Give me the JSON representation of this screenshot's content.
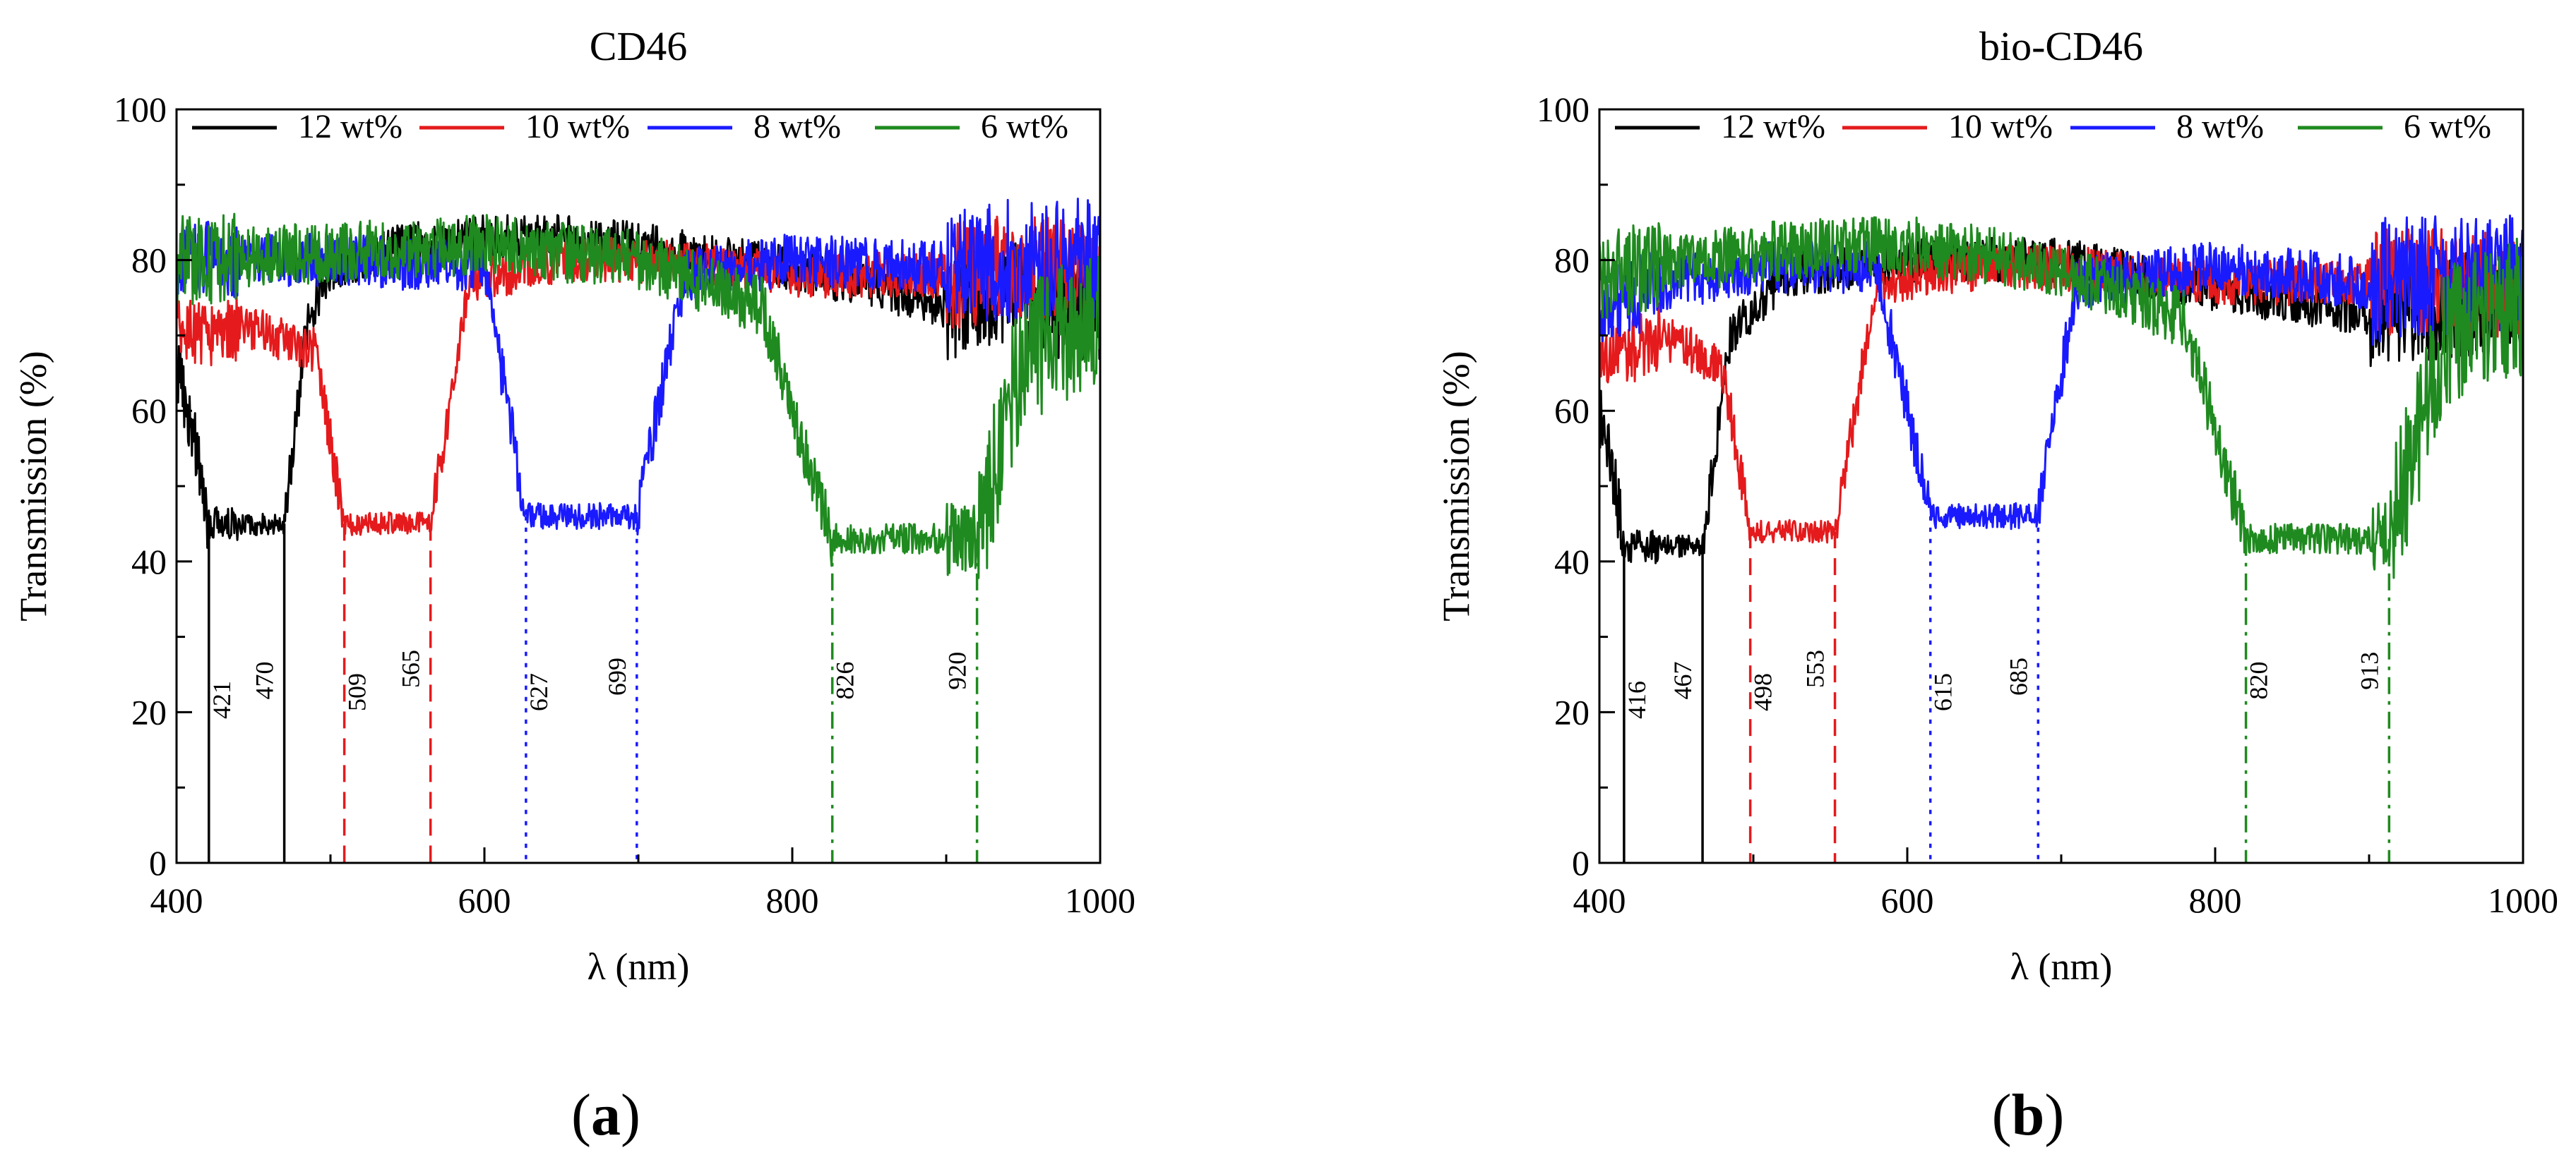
{
  "figure": {
    "panels": [
      {
        "label_open": "(",
        "label_letter": "a",
        "label_close": ")"
      },
      {
        "label_open": "(",
        "label_letter": "b",
        "label_close": ")"
      }
    ]
  },
  "chart_data": [
    {
      "type": "line",
      "title": "CD46",
      "xlabel": "λ (nm)",
      "ylabel": "Transmission (%)",
      "xlim": [
        400,
        1000
      ],
      "ylim": [
        0,
        100
      ],
      "xticks": [
        400,
        600,
        800,
        1000
      ],
      "yticks": [
        0,
        20,
        40,
        60,
        80,
        100
      ],
      "grid": false,
      "legend_position": "top",
      "series": [
        {
          "name": "12 wt%",
          "color": "#000000",
          "left_edge": 421,
          "right_edge": 470,
          "floor": 45,
          "short_side": 62,
          "long_side": 80,
          "noise": 3,
          "x": [
            400,
            410,
            421,
            470,
            485,
            500,
            550,
            600,
            650,
            700,
            800,
            900,
            950,
            1000
          ],
          "y": [
            66,
            58,
            45,
            45,
            72,
            79,
            82,
            83,
            83,
            82,
            79,
            74,
            76,
            72
          ]
        },
        {
          "name": "10 wt%",
          "color": "#e41a1c",
          "left_edge": 509,
          "right_edge": 565,
          "floor": 45,
          "short_side": 70,
          "long_side": 80,
          "noise": 3,
          "x": [
            400,
            450,
            490,
            509,
            565,
            590,
            650,
            700,
            800,
            900,
            950,
            1000
          ],
          "y": [
            70,
            71,
            68,
            45,
            45,
            77,
            80,
            80,
            78,
            78,
            79,
            78
          ]
        },
        {
          "name": "8 wt%",
          "color": "#1a1aff",
          "left_edge": 627,
          "right_edge": 699,
          "floor": 46,
          "short_side": 80,
          "long_side": 80,
          "noise": 3.5,
          "x": [
            400,
            450,
            500,
            600,
            627,
            699,
            730,
            800,
            900,
            950,
            1000
          ],
          "y": [
            80,
            80,
            80,
            79,
            46,
            46,
            78,
            80,
            79,
            80,
            80
          ]
        },
        {
          "name": "6 wt%",
          "color": "#1f8a1f",
          "left_edge": 826,
          "right_edge": 920,
          "floor": 43,
          "short_side": 81,
          "long_side": 73,
          "noise": 4,
          "x": [
            400,
            500,
            600,
            700,
            780,
            826,
            920,
            950,
            1000
          ],
          "y": [
            80,
            81,
            82,
            80,
            74,
            43,
            43,
            68,
            72
          ]
        }
      ],
      "cutoff_markers": [
        {
          "value": 421,
          "label": "421",
          "series": "12 wt%",
          "style": "solid"
        },
        {
          "value": 470,
          "label": "470",
          "series": "12 wt%",
          "style": "solid"
        },
        {
          "value": 509,
          "label": "509",
          "series": "10 wt%",
          "style": "dashed"
        },
        {
          "value": 565,
          "label": "565",
          "series": "10 wt%",
          "style": "dashed"
        },
        {
          "value": 627,
          "label": "627",
          "series": "8 wt%",
          "style": "dotted"
        },
        {
          "value": 699,
          "label": "699",
          "series": "8 wt%",
          "style": "dotted"
        },
        {
          "value": 826,
          "label": "826",
          "series": "6 wt%",
          "style": "dashdot"
        },
        {
          "value": 920,
          "label": "920",
          "series": "6 wt%",
          "style": "dashdot"
        }
      ]
    },
    {
      "type": "line",
      "title": "bio-CD46",
      "xlabel": "λ (nm)",
      "ylabel": "Transmission (%)",
      "xlim": [
        400,
        1000
      ],
      "ylim": [
        0,
        100
      ],
      "xticks": [
        400,
        600,
        800,
        1000
      ],
      "yticks": [
        0,
        20,
        40,
        60,
        80,
        100
      ],
      "grid": false,
      "legend_position": "top",
      "series": [
        {
          "name": "12 wt%",
          "color": "#000000",
          "left_edge": 416,
          "right_edge": 467,
          "floor": 42,
          "short_side": 58,
          "long_side": 80,
          "noise": 3,
          "x": [
            400,
            410,
            416,
            467,
            485,
            520,
            600,
            700,
            800,
            900,
            950,
            1000
          ],
          "y": [
            60,
            50,
            42,
            42,
            70,
            78,
            80,
            80,
            76,
            73,
            74,
            75
          ]
        },
        {
          "name": "10 wt%",
          "color": "#e41a1c",
          "left_edge": 498,
          "right_edge": 553,
          "floor": 44,
          "short_side": 68,
          "long_side": 79,
          "noise": 3,
          "x": [
            400,
            440,
            480,
            498,
            553,
            580,
            650,
            700,
            800,
            900,
            950,
            1000
          ],
          "y": [
            66,
            70,
            66,
            44,
            44,
            77,
            79,
            79,
            77,
            77,
            77,
            76
          ]
        },
        {
          "name": "8 wt%",
          "color": "#1a1aff",
          "left_edge": 615,
          "right_edge": 685,
          "floor": 46,
          "short_side": 78,
          "long_side": 78,
          "noise": 3.5,
          "x": [
            400,
            450,
            500,
            580,
            615,
            685,
            710,
            800,
            900,
            950,
            1000
          ],
          "y": [
            74,
            77,
            79,
            79,
            46,
            46,
            77,
            79,
            77,
            78,
            78
          ]
        },
        {
          "name": "6 wt%",
          "color": "#1f8a1f",
          "left_edge": 820,
          "right_edge": 913,
          "floor": 43,
          "short_side": 81,
          "long_side": 72,
          "noise": 4,
          "x": [
            400,
            500,
            600,
            700,
            780,
            820,
            913,
            950,
            1000
          ],
          "y": [
            78,
            81,
            82,
            79,
            72,
            43,
            43,
            70,
            74
          ]
        }
      ],
      "cutoff_markers": [
        {
          "value": 416,
          "label": "416",
          "series": "12 wt%",
          "style": "solid"
        },
        {
          "value": 467,
          "label": "467",
          "series": "12 wt%",
          "style": "solid"
        },
        {
          "value": 498,
          "label": "498",
          "series": "10 wt%",
          "style": "dashed"
        },
        {
          "value": 553,
          "label": "553",
          "series": "10 wt%",
          "style": "dashed"
        },
        {
          "value": 615,
          "label": "615",
          "series": "8 wt%",
          "style": "dotted"
        },
        {
          "value": 685,
          "label": "685",
          "series": "8 wt%",
          "style": "dotted"
        },
        {
          "value": 820,
          "label": "820",
          "series": "6 wt%",
          "style": "dashdot"
        },
        {
          "value": 913,
          "label": "913",
          "series": "6 wt%",
          "style": "dashdot"
        }
      ]
    }
  ]
}
